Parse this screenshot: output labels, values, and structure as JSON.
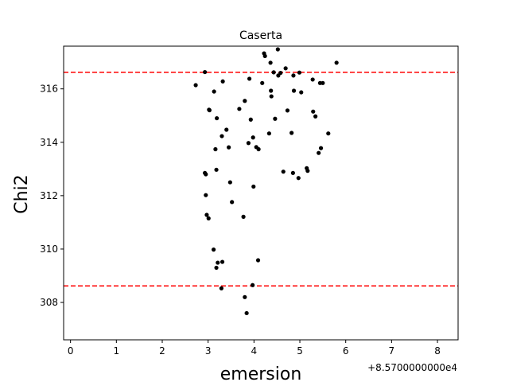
{
  "chart_data": {
    "type": "scatter",
    "title": "Caserta",
    "xlabel": "emersion",
    "ylabel": "Chi2",
    "x_offset_label": "+8.5700000000e4",
    "xlim": [
      -0.15,
      8.45
    ],
    "ylim": [
      306.6,
      317.6
    ],
    "xticks": [
      0,
      1,
      2,
      3,
      4,
      5,
      6,
      7,
      8
    ],
    "yticks": [
      308,
      310,
      312,
      314,
      316
    ],
    "grid": false,
    "marker_color": "#000000",
    "reference_lines": [
      {
        "y": 316.62,
        "color": "#ff0000",
        "style": "dashed"
      },
      {
        "y": 308.62,
        "color": "#ff0000",
        "style": "dashed"
      }
    ],
    "points": [
      [
        2.73,
        316.14
      ],
      [
        2.93,
        316.63
      ],
      [
        3.02,
        315.22
      ],
      [
        3.03,
        315.2
      ],
      [
        3.13,
        315.9
      ],
      [
        3.19,
        314.9
      ],
      [
        3.32,
        316.28
      ],
      [
        2.93,
        312.85
      ],
      [
        2.95,
        312.8
      ],
      [
        2.95,
        312.02
      ],
      [
        3.18,
        312.97
      ],
      [
        2.97,
        311.28
      ],
      [
        3.01,
        311.15
      ],
      [
        3.16,
        313.74
      ],
      [
        3.3,
        314.23
      ],
      [
        3.4,
        314.47
      ],
      [
        3.45,
        313.81
      ],
      [
        3.48,
        312.5
      ],
      [
        3.52,
        311.76
      ],
      [
        3.12,
        309.98
      ],
      [
        3.21,
        309.49
      ],
      [
        3.18,
        309.3
      ],
      [
        3.31,
        309.52
      ],
      [
        3.29,
        308.53
      ],
      [
        3.68,
        315.25
      ],
      [
        3.8,
        315.55
      ],
      [
        3.9,
        316.38
      ],
      [
        3.93,
        314.85
      ],
      [
        3.98,
        314.18
      ],
      [
        3.88,
        313.97
      ],
      [
        4.05,
        313.82
      ],
      [
        4.1,
        313.74
      ],
      [
        3.99,
        312.34
      ],
      [
        3.77,
        311.21
      ],
      [
        4.09,
        309.58
      ],
      [
        3.97,
        308.65
      ],
      [
        3.8,
        308.2
      ],
      [
        3.84,
        307.6
      ],
      [
        4.18,
        316.22
      ],
      [
        4.22,
        317.33
      ],
      [
        4.24,
        317.23
      ],
      [
        4.36,
        316.98
      ],
      [
        4.52,
        317.48
      ],
      [
        4.43,
        316.62
      ],
      [
        4.53,
        316.5
      ],
      [
        4.58,
        316.6
      ],
      [
        4.69,
        316.77
      ],
      [
        4.37,
        315.93
      ],
      [
        4.38,
        315.72
      ],
      [
        4.46,
        314.88
      ],
      [
        4.33,
        314.33
      ],
      [
        4.73,
        315.19
      ],
      [
        4.82,
        314.35
      ],
      [
        4.86,
        316.5
      ],
      [
        4.87,
        315.93
      ],
      [
        4.99,
        316.61
      ],
      [
        5.03,
        315.87
      ],
      [
        5.28,
        316.35
      ],
      [
        5.29,
        315.15
      ],
      [
        5.34,
        314.97
      ],
      [
        5.44,
        316.22
      ],
      [
        5.5,
        316.22
      ],
      [
        5.62,
        314.33
      ],
      [
        5.46,
        313.78
      ],
      [
        5.41,
        313.6
      ],
      [
        5.15,
        313.03
      ],
      [
        5.17,
        312.93
      ],
      [
        4.64,
        312.9
      ],
      [
        4.85,
        312.85
      ],
      [
        4.97,
        312.66
      ],
      [
        5.8,
        316.98
      ]
    ]
  }
}
